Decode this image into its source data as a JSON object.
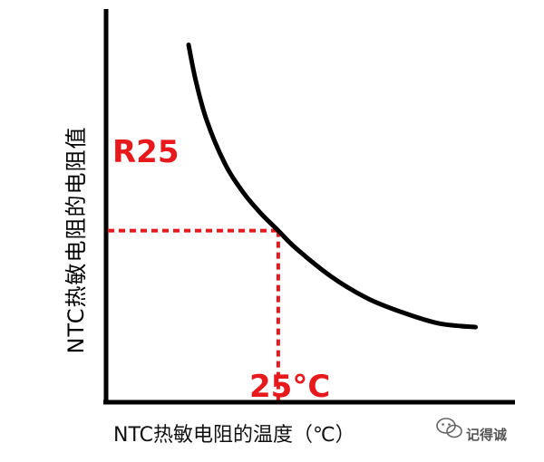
{
  "chart_data": {
    "type": "line",
    "title": "",
    "ylabel": "NTC热敏电阻的电阻值",
    "xlabel": "NTC热敏电阻的温度（℃）",
    "series": [
      {
        "values_description": "",
        "x": [
          0,
          2,
          5,
          10,
          15,
          20,
          25,
          30,
          40,
          50,
          60,
          70,
          80
        ],
        "y": [
          100,
          90,
          79,
          67,
          59,
          53,
          48,
          43,
          35,
          29,
          25,
          22,
          21
        ]
      }
    ],
    "reference": {
      "x_label": "25°C",
      "y_label": "R25",
      "x": 25,
      "y": 48
    },
    "xlim": [
      -23,
      91
    ],
    "ylim": [
      0,
      110
    ],
    "grid": false,
    "colors": {
      "curve": "#000000",
      "axis": "#000000",
      "reference": "#e8191c"
    }
  },
  "watermark": {
    "text": "记得诚",
    "icon": "wechat-icon"
  }
}
